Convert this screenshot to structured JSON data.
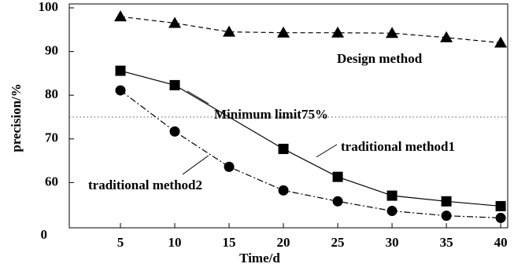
{
  "chart_data": {
    "type": "line",
    "xlabel": "Time/d",
    "ylabel": "precision/%",
    "xlim": [
      0,
      40.5
    ],
    "xticks": [
      5,
      10,
      15,
      20,
      25,
      30,
      35,
      40
    ],
    "ylim": [
      50,
      100
    ],
    "yticks": [
      60,
      70,
      80,
      90,
      100
    ],
    "y_origin_label": "0",
    "reference_line": {
      "value": 75,
      "label": "Minimum limit75%"
    },
    "series": [
      {
        "name": "Design method",
        "color": "#000000",
        "marker": "triangle",
        "line_style": "dashed",
        "x": [
          5,
          10,
          15,
          20,
          25,
          30,
          35,
          40
        ],
        "values": [
          98,
          96.5,
          94.5,
          94.3,
          94.3,
          94.2,
          93.2,
          92
        ]
      },
      {
        "name": "traditional method1",
        "color": "#000000",
        "marker": "square",
        "line_style": "solid",
        "x": [
          5,
          10,
          20,
          25,
          30,
          35,
          40
        ],
        "values": [
          85.6,
          82.3,
          67.7,
          61.3,
          57,
          55.7,
          54.6
        ]
      },
      {
        "name": "traditional method2",
        "color": "#000000",
        "marker": "circle",
        "line_style": "dashdot",
        "x": [
          5,
          10,
          15,
          20,
          25,
          30,
          35,
          40
        ],
        "values": [
          81.1,
          71.7,
          63.6,
          58.2,
          55.7,
          53.5,
          52.4,
          51.9
        ]
      }
    ]
  }
}
